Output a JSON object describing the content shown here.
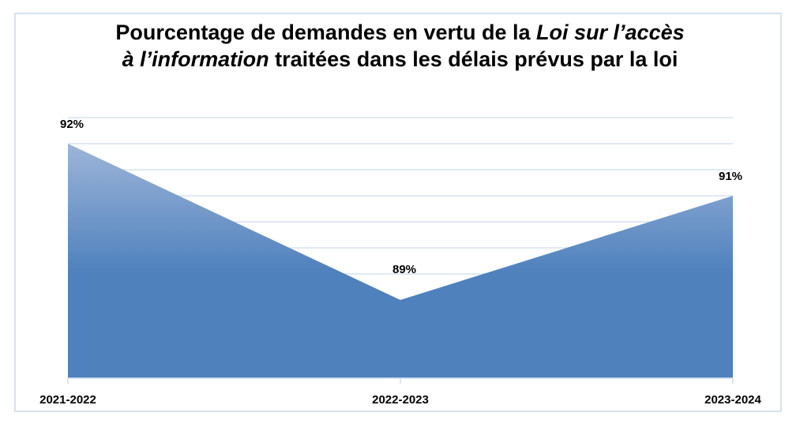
{
  "chart_data": {
    "type": "area",
    "title_line1_a": "Pourcentage de demandes en vertu de la ",
    "title_line1_b": "Loi sur l’accès",
    "title_line2_a": "à l’information",
    "title_line2_b": " traitées dans les délais prévus par la loi",
    "categories": [
      "2021-2022",
      "2022-2023",
      "2023-2024"
    ],
    "values": [
      92,
      89,
      91
    ],
    "data_labels": [
      "92%",
      "89%",
      "91%"
    ],
    "ylim": [
      87.5,
      92.5
    ],
    "grid": true,
    "legend": "none",
    "colors": {
      "fill_top": "#9db5d8",
      "fill_bottom": "#4f81bd",
      "grid": "#d6e3ef",
      "frame": "#d6e3ef"
    }
  }
}
